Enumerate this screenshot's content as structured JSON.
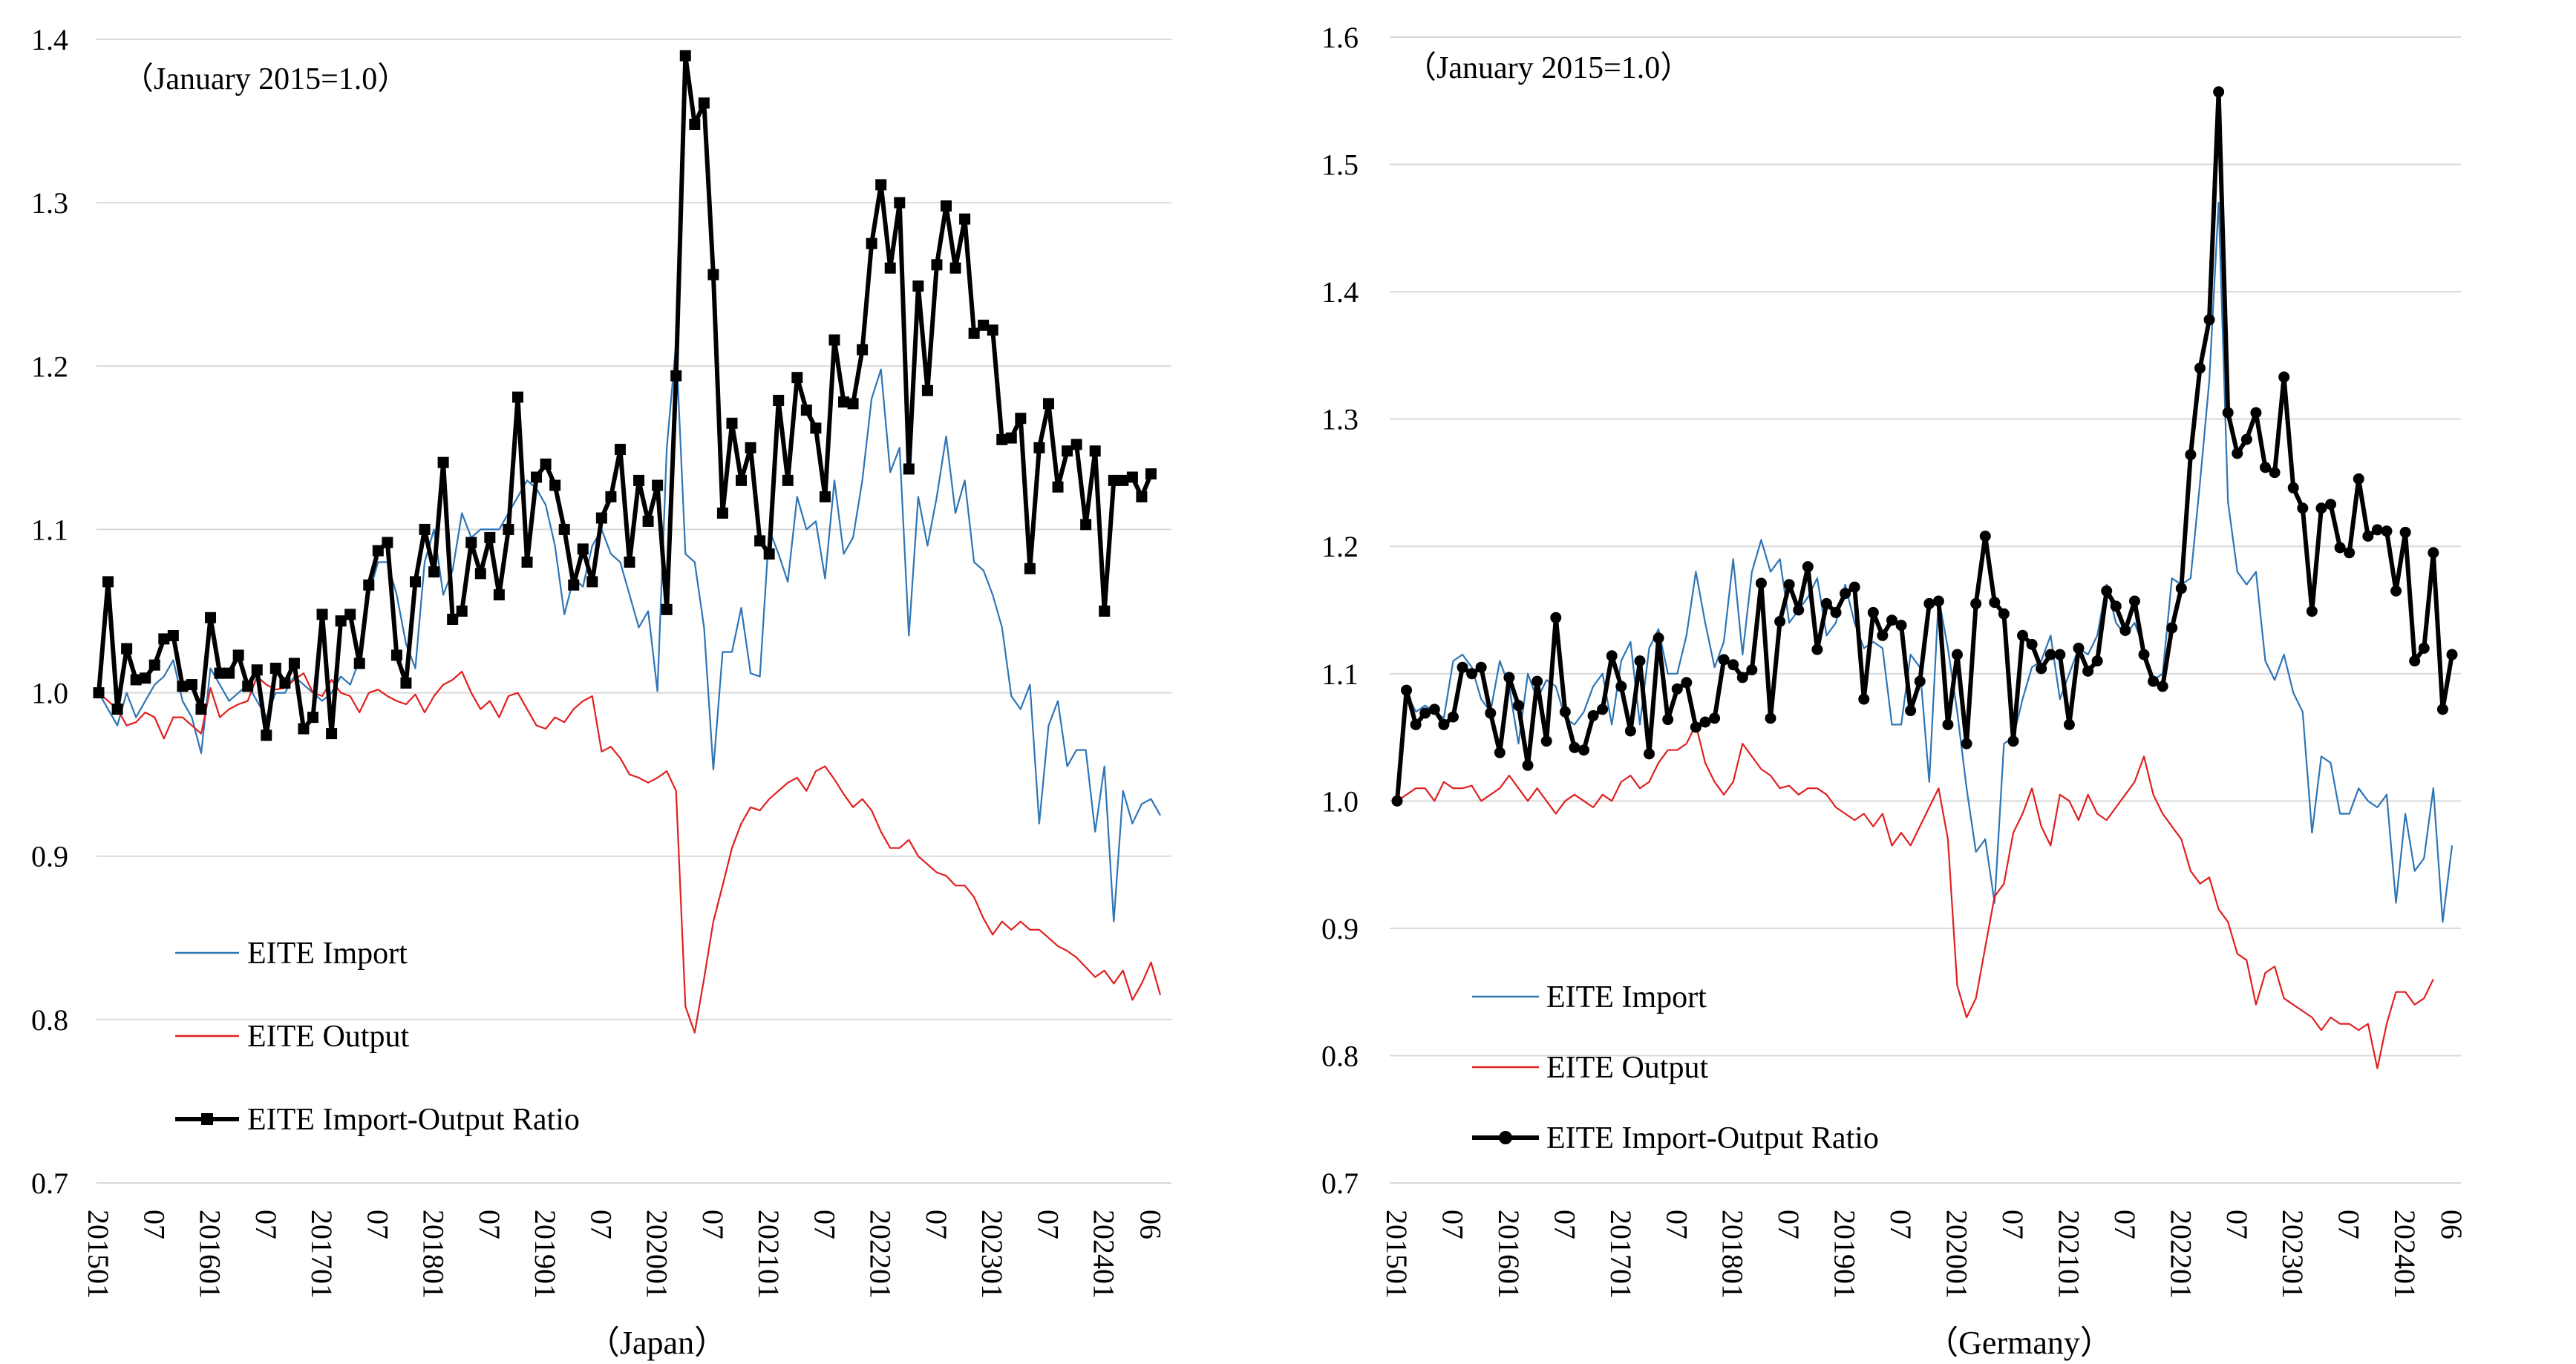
{
  "colors": {
    "import": "#2E75B6",
    "output": "#E02020",
    "ratio": "#000000",
    "grid": "#D9D9D9"
  },
  "chart_data": [
    {
      "type": "line",
      "caption": "（Japan）",
      "note": "（January 2015=1.0）",
      "ylim": [
        0.7,
        1.4
      ],
      "yticks": [
        "0.7",
        "0.8",
        "0.9",
        "1.0",
        "1.1",
        "1.2",
        "1.3",
        "1.4"
      ],
      "xticks": [
        {
          "label": "201501",
          "i": 0
        },
        {
          "label": "07",
          "i": 6
        },
        {
          "label": "201601",
          "i": 12
        },
        {
          "label": "07",
          "i": 18
        },
        {
          "label": "201701",
          "i": 24
        },
        {
          "label": "07",
          "i": 30
        },
        {
          "label": "201801",
          "i": 36
        },
        {
          "label": "07",
          "i": 42
        },
        {
          "label": "201901",
          "i": 48
        },
        {
          "label": "07",
          "i": 54
        },
        {
          "label": "202001",
          "i": 60
        },
        {
          "label": "07",
          "i": 66
        },
        {
          "label": "202101",
          "i": 72
        },
        {
          "label": "07",
          "i": 78
        },
        {
          "label": "202201",
          "i": 84
        },
        {
          "label": "07",
          "i": 90
        },
        {
          "label": "202301",
          "i": 96
        },
        {
          "label": "07",
          "i": 102
        },
        {
          "label": "202401",
          "i": 108
        },
        {
          "label": "06",
          "i": 113
        }
      ],
      "marker": "square",
      "series": [
        {
          "key": "import",
          "name": "EITE Import",
          "values": [
            1.0,
            0.99,
            0.98,
            1.0,
            0.985,
            0.995,
            1.005,
            1.01,
            1.02,
            0.995,
            0.985,
            0.963,
            1.015,
            1.005,
            0.995,
            1.0,
            1.005,
            0.995,
            0.985,
            1.0,
            1.0,
            1.01,
            1.005,
            1.0,
            0.995,
            1.0,
            1.01,
            1.005,
            1.02,
            1.06,
            1.08,
            1.08,
            1.06,
            1.03,
            1.015,
            1.08,
            1.1,
            1.06,
            1.075,
            1.11,
            1.095,
            1.1,
            1.1,
            1.1,
            1.11,
            1.12,
            1.13,
            1.125,
            1.115,
            1.09,
            1.048,
            1.07,
            1.065,
            1.09,
            1.1,
            1.085,
            1.08,
            1.06,
            1.04,
            1.05,
            1.001,
            1.15,
            1.214,
            1.085,
            1.08,
            1.04,
            0.953,
            1.025,
            1.025,
            1.052,
            1.012,
            1.01,
            1.1,
            1.085,
            1.068,
            1.12,
            1.1,
            1.105,
            1.07,
            1.13,
            1.085,
            1.095,
            1.13,
            1.18,
            1.198,
            1.135,
            1.15,
            1.035,
            1.12,
            1.09,
            1.12,
            1.157,
            1.11,
            1.13,
            1.08,
            1.075,
            1.06,
            1.04,
            0.998,
            0.99,
            1.005,
            0.92,
            0.98,
            0.995,
            0.955,
            0.965,
            0.965,
            0.915,
            0.955,
            0.86,
            0.94,
            0.92,
            0.932,
            0.935,
            0.925
          ]
        },
        {
          "key": "output",
          "name": "EITE Output",
          "values": [
            1.0,
            0.995,
            0.99,
            0.98,
            0.982,
            0.988,
            0.985,
            0.972,
            0.985,
            0.985,
            0.98,
            0.975,
            1.003,
            0.985,
            0.99,
            0.993,
            0.995,
            1.01,
            1.005,
            1.002,
            1.003,
            1.008,
            1.012,
            1.0,
            0.998,
            1.008,
            1.0,
            0.998,
            0.988,
            1.0,
            1.002,
            0.998,
            0.995,
            0.993,
            0.999,
            0.988,
            0.998,
            1.005,
            1.008,
            1.013,
            1.0,
            0.99,
            0.995,
            0.985,
            0.998,
            1.0,
            0.99,
            0.98,
            0.978,
            0.985,
            0.982,
            0.99,
            0.995,
            0.998,
            0.964,
            0.967,
            0.96,
            0.95,
            0.948,
            0.945,
            0.948,
            0.952,
            0.94,
            0.808,
            0.792,
            0.825,
            0.86,
            0.882,
            0.905,
            0.92,
            0.93,
            0.928,
            0.935,
            0.94,
            0.945,
            0.948,
            0.94,
            0.952,
            0.955,
            0.947,
            0.938,
            0.93,
            0.935,
            0.928,
            0.915,
            0.905,
            0.905,
            0.91,
            0.9,
            0.895,
            0.89,
            0.888,
            0.882,
            0.882,
            0.875,
            0.862,
            0.852,
            0.86,
            0.855,
            0.86,
            0.855,
            0.855,
            0.85,
            0.845,
            0.842,
            0.838,
            0.832,
            0.826,
            0.83,
            0.822,
            0.83,
            0.812,
            0.822,
            0.835,
            0.815
          ]
        },
        {
          "key": "ratio",
          "name": "EITE Import-Output Ratio",
          "values": [
            1.0,
            1.068,
            0.99,
            1.027,
            1.008,
            1.009,
            1.017,
            1.033,
            1.035,
            1.004,
            1.005,
            0.99,
            1.046,
            1.012,
            1.012,
            1.023,
            1.004,
            1.014,
            0.974,
            1.015,
            1.006,
            1.018,
            0.978,
            0.985,
            1.048,
            0.975,
            1.044,
            1.048,
            1.018,
            1.066,
            1.087,
            1.092,
            1.023,
            1.006,
            1.068,
            1.1,
            1.074,
            1.141,
            1.045,
            1.05,
            1.092,
            1.073,
            1.095,
            1.06,
            1.1,
            1.181,
            1.08,
            1.132,
            1.14,
            1.127,
            1.1,
            1.066,
            1.088,
            1.068,
            1.107,
            1.12,
            1.149,
            1.08,
            1.13,
            1.105,
            1.127,
            1.051,
            1.194,
            1.39,
            1.348,
            1.361,
            1.256,
            1.11,
            1.165,
            1.13,
            1.15,
            1.093,
            1.085,
            1.179,
            1.13,
            1.193,
            1.173,
            1.162,
            1.12,
            1.216,
            1.178,
            1.177,
            1.21,
            1.275,
            1.311,
            1.26,
            1.3,
            1.137,
            1.249,
            1.185,
            1.262,
            1.298,
            1.26,
            1.29,
            1.22,
            1.225,
            1.222,
            1.155,
            1.156,
            1.168,
            1.076,
            1.15,
            1.177,
            1.126,
            1.148,
            1.152,
            1.103,
            1.148,
            1.05,
            1.13,
            1.13,
            1.132,
            1.12,
            1.134
          ]
        }
      ]
    },
    {
      "type": "line",
      "caption": "（Germany）",
      "note": "（January 2015=1.0）",
      "ylim": [
        0.7,
        1.6
      ],
      "yticks": [
        "0.7",
        "0.8",
        "0.9",
        "1.0",
        "1.1",
        "1.2",
        "1.3",
        "1.4",
        "1.5",
        "1.6"
      ],
      "xticks": [
        {
          "label": "201501",
          "i": 0
        },
        {
          "label": "07",
          "i": 6
        },
        {
          "label": "201601",
          "i": 12
        },
        {
          "label": "07",
          "i": 18
        },
        {
          "label": "201701",
          "i": 24
        },
        {
          "label": "07",
          "i": 30
        },
        {
          "label": "201801",
          "i": 36
        },
        {
          "label": "07",
          "i": 42
        },
        {
          "label": "201901",
          "i": 48
        },
        {
          "label": "07",
          "i": 54
        },
        {
          "label": "202001",
          "i": 60
        },
        {
          "label": "07",
          "i": 66
        },
        {
          "label": "202101",
          "i": 72
        },
        {
          "label": "07",
          "i": 78
        },
        {
          "label": "202201",
          "i": 84
        },
        {
          "label": "07",
          "i": 90
        },
        {
          "label": "202301",
          "i": 96
        },
        {
          "label": "07",
          "i": 102
        },
        {
          "label": "202401",
          "i": 108
        },
        {
          "label": "06",
          "i": 113
        }
      ],
      "marker": "circle",
      "series": [
        {
          "key": "import",
          "name": "EITE Import",
          "values": [
            1.0,
            1.085,
            1.07,
            1.075,
            1.07,
            1.065,
            1.11,
            1.115,
            1.105,
            1.08,
            1.07,
            1.11,
            1.09,
            1.045,
            1.1,
            1.08,
            1.095,
            1.09,
            1.065,
            1.06,
            1.07,
            1.09,
            1.1,
            1.06,
            1.11,
            1.125,
            1.06,
            1.12,
            1.135,
            1.1,
            1.1,
            1.13,
            1.18,
            1.14,
            1.105,
            1.125,
            1.19,
            1.115,
            1.18,
            1.205,
            1.18,
            1.19,
            1.14,
            1.15,
            1.16,
            1.175,
            1.13,
            1.14,
            1.17,
            1.14,
            1.12,
            1.125,
            1.12,
            1.06,
            1.06,
            1.115,
            1.105,
            1.015,
            1.16,
            1.12,
            1.07,
            1.01,
            0.96,
            0.97,
            0.92,
            1.045,
            1.05,
            1.08,
            1.105,
            1.11,
            1.13,
            1.08,
            1.1,
            1.12,
            1.115,
            1.13,
            1.17,
            1.14,
            1.13,
            1.14,
            1.12,
            1.095,
            1.1,
            1.175,
            1.17,
            1.175,
            1.25,
            1.33,
            1.47,
            1.235,
            1.18,
            1.17,
            1.18,
            1.11,
            1.095,
            1.115,
            1.085,
            1.07,
            0.975,
            1.035,
            1.03,
            0.99,
            0.99,
            1.01,
            1.0,
            0.995,
            1.005,
            0.92,
            0.99,
            0.945,
            0.955,
            1.01,
            0.905,
            0.965
          ]
        },
        {
          "key": "output",
          "name": "EITE Output",
          "values": [
            1.0,
            1.005,
            1.01,
            1.01,
            1.0,
            1.015,
            1.01,
            1.01,
            1.012,
            1.0,
            1.005,
            1.01,
            1.02,
            1.01,
            1.0,
            1.01,
            1.0,
            0.99,
            1.0,
            1.005,
            1.0,
            0.995,
            1.005,
            1.0,
            1.015,
            1.02,
            1.01,
            1.015,
            1.03,
            1.04,
            1.04,
            1.045,
            1.06,
            1.03,
            1.015,
            1.005,
            1.015,
            1.045,
            1.035,
            1.025,
            1.02,
            1.01,
            1.012,
            1.005,
            1.01,
            1.01,
            1.005,
            0.995,
            0.99,
            0.985,
            0.99,
            0.98,
            0.99,
            0.965,
            0.975,
            0.965,
            0.98,
            0.995,
            1.01,
            0.97,
            0.855,
            0.83,
            0.845,
            0.885,
            0.925,
            0.935,
            0.975,
            0.99,
            1.01,
            0.98,
            0.965,
            1.005,
            1.0,
            0.985,
            1.005,
            0.99,
            0.985,
            0.995,
            1.005,
            1.015,
            1.035,
            1.005,
            0.99,
            0.98,
            0.97,
            0.945,
            0.935,
            0.94,
            0.915,
            0.905,
            0.88,
            0.875,
            0.84,
            0.865,
            0.87,
            0.845,
            0.84,
            0.835,
            0.83,
            0.82,
            0.83,
            0.825,
            0.825,
            0.82,
            0.825,
            0.79,
            0.825,
            0.85,
            0.85,
            0.84,
            0.845,
            0.86
          ]
        },
        {
          "key": "ratio",
          "name": "EITE Import-Output Ratio",
          "values": [
            1.0,
            1.087,
            1.06,
            1.069,
            1.072,
            1.06,
            1.066,
            1.105,
            1.1,
            1.105,
            1.069,
            1.038,
            1.097,
            1.075,
            1.028,
            1.094,
            1.047,
            1.144,
            1.07,
            1.042,
            1.04,
            1.067,
            1.072,
            1.114,
            1.09,
            1.055,
            1.11,
            1.037,
            1.128,
            1.064,
            1.088,
            1.093,
            1.058,
            1.062,
            1.065,
            1.111,
            1.107,
            1.097,
            1.103,
            1.171,
            1.065,
            1.141,
            1.17,
            1.15,
            1.184,
            1.119,
            1.155,
            1.148,
            1.163,
            1.168,
            1.08,
            1.148,
            1.13,
            1.142,
            1.138,
            1.071,
            1.094,
            1.155,
            1.157,
            1.06,
            1.115,
            1.045,
            1.155,
            1.208,
            1.156,
            1.147,
            1.047,
            1.13,
            1.123,
            1.104,
            1.115,
            1.115,
            1.06,
            1.12,
            1.102,
            1.11,
            1.165,
            1.153,
            1.134,
            1.157,
            1.115,
            1.094,
            1.09,
            1.136,
            1.167,
            1.272,
            1.34,
            1.378,
            1.557,
            1.305,
            1.273,
            1.284,
            1.305,
            1.262,
            1.258,
            1.333,
            1.246,
            1.23,
            1.149,
            1.23,
            1.233,
            1.199,
            1.195,
            1.253,
            1.208,
            1.213,
            1.212,
            1.165,
            1.211,
            1.11,
            1.12,
            1.195,
            1.072,
            1.115
          ]
        }
      ]
    }
  ]
}
